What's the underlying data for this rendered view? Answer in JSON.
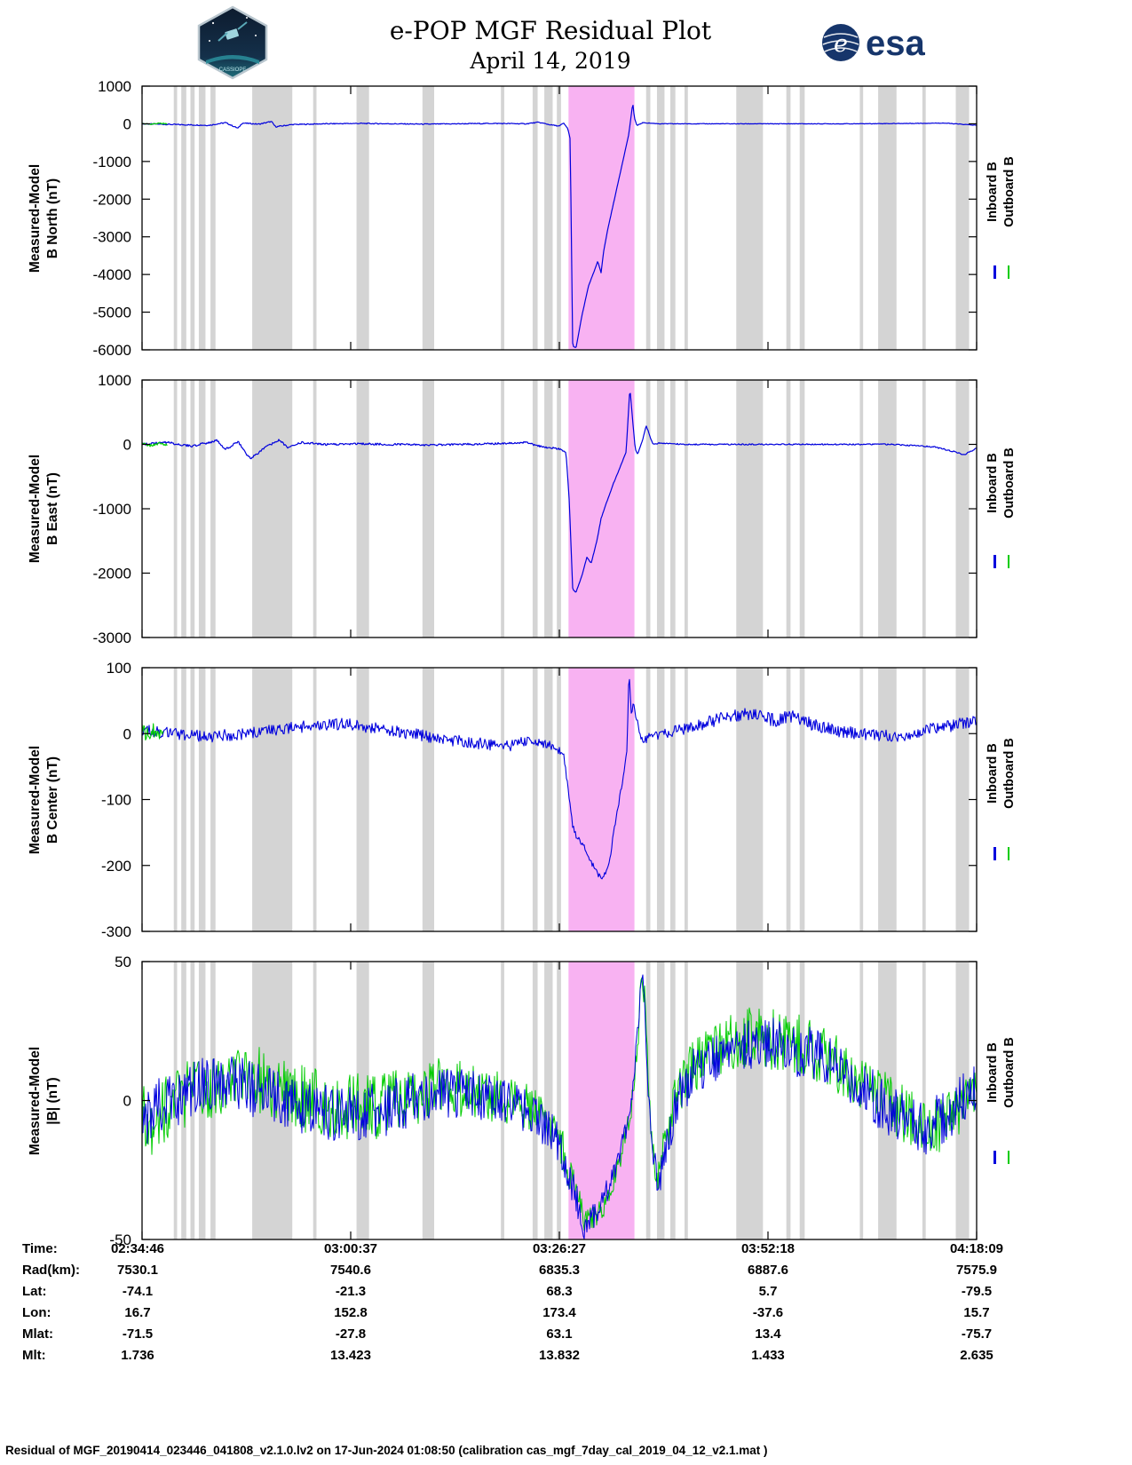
{
  "header": {
    "esa_text": "esa",
    "patch_text": "CASSIOPE"
  },
  "chart_data": {
    "type": "line",
    "title": "e-POP MGF Residual Plot",
    "subtitle": "April 14, 2019",
    "series_names": [
      "Inboard B",
      "Outboard B"
    ],
    "colors": {
      "inboard": "#0000dd",
      "outboard": "#00cc00",
      "highlight": "#f8b2f2",
      "gap": "#d4d4d4"
    },
    "highlight_band": {
      "start": 0.511,
      "end": 0.59,
      "color": "#f8b2f2"
    },
    "gap_bands": [
      [
        0.038,
        0.004
      ],
      [
        0.047,
        0.006
      ],
      [
        0.058,
        0.005
      ],
      [
        0.068,
        0.008
      ],
      [
        0.082,
        0.006
      ],
      [
        0.132,
        0.048
      ],
      [
        0.205,
        0.004
      ],
      [
        0.257,
        0.015
      ],
      [
        0.336,
        0.014
      ],
      [
        0.43,
        0.004
      ],
      [
        0.468,
        0.006
      ],
      [
        0.482,
        0.01
      ],
      [
        0.497,
        0.005
      ],
      [
        0.604,
        0.005
      ],
      [
        0.617,
        0.009
      ],
      [
        0.633,
        0.006
      ],
      [
        0.65,
        0.004
      ],
      [
        0.712,
        0.032
      ],
      [
        0.772,
        0.005
      ],
      [
        0.788,
        0.006
      ],
      [
        0.86,
        0.004
      ],
      [
        0.882,
        0.022
      ],
      [
        0.935,
        0.004
      ],
      [
        0.975,
        0.016
      ]
    ],
    "x_table": {
      "col_fractions": [
        0,
        0.25,
        0.5,
        0.75,
        1
      ],
      "rows": [
        {
          "label": "Time:",
          "values": [
            "02:34:46",
            "03:00:37",
            "03:26:27",
            "03:52:18",
            "04:18:09"
          ]
        },
        {
          "label": "Rad(km):",
          "values": [
            "7530.1",
            "7540.6",
            "6835.3",
            "6887.6",
            "7575.9"
          ]
        },
        {
          "label": "Lat:",
          "values": [
            "-74.1",
            "-21.3",
            "68.3",
            "5.7",
            "-79.5"
          ]
        },
        {
          "label": "Lon:",
          "values": [
            "16.7",
            "152.8",
            "173.4",
            "-37.6",
            "15.7"
          ]
        },
        {
          "label": "Mlat:",
          "values": [
            "-71.5",
            "-27.8",
            "63.1",
            "13.4",
            "-75.7"
          ]
        },
        {
          "label": "Mlt:",
          "values": [
            "1.736",
            "13.423",
            "13.832",
            "1.433",
            "2.635"
          ]
        }
      ]
    },
    "panels": [
      {
        "ylabel_line1": "Measured-Model",
        "ylabel_line2": "B North (nT)",
        "ylim": [
          -6000,
          1000
        ],
        "yticks": [
          1000,
          0,
          -1000,
          -2000,
          -3000,
          -4000,
          -5000,
          -6000
        ],
        "series": [
          {
            "name": "Inboard B",
            "color": "#0000dd",
            "width": 1.2,
            "x": [
              0,
              0.04,
              0.08,
              0.1,
              0.115,
              0.12,
              0.14,
              0.155,
              0.16,
              0.18,
              0.22,
              0.26,
              0.3,
              0.34,
              0.38,
              0.42,
              0.46,
              0.475,
              0.49,
              0.5,
              0.505,
              0.51,
              0.513,
              0.516,
              0.52,
              0.527,
              0.535,
              0.542,
              0.546,
              0.55,
              0.553,
              0.558,
              0.565,
              0.572,
              0.578,
              0.583,
              0.586,
              0.588,
              0.59,
              0.593,
              0.6,
              0.62,
              0.66,
              0.72,
              0.78,
              0.85,
              0.92,
              0.96,
              1
            ],
            "y": [
              0,
              -20,
              -40,
              30,
              -120,
              20,
              -10,
              60,
              -80,
              -20,
              0,
              10,
              0,
              -10,
              0,
              10,
              0,
              40,
              -30,
              -60,
              20,
              -120,
              -400,
              -5900,
              -5950,
              -5100,
              -4300,
              -3900,
              -3650,
              -3950,
              -3400,
              -2800,
              -2100,
              -1400,
              -800,
              -300,
              200,
              550,
              150,
              -50,
              30,
              0,
              0,
              0,
              0,
              0,
              10,
              20,
              -40
            ],
            "noise": [
              [
                0,
                15
              ],
              [
                0.5,
                12
              ],
              [
                0.51,
                5
              ],
              [
                0.59,
                5
              ],
              [
                0.6,
                8
              ],
              [
                1,
                8
              ]
            ]
          },
          {
            "name": "Outboard B",
            "color": "#00cc00",
            "width": 1.2,
            "x": [
              0,
              0.01,
              0.02,
              0.03
            ],
            "y": [
              0,
              -10,
              10,
              0
            ],
            "noise": [
              [
                0,
                15
              ],
              [
                0.03,
                15
              ]
            ]
          }
        ]
      },
      {
        "ylabel_line1": "Measured-Model",
        "ylabel_line2": "B East (nT)",
        "ylim": [
          -3000,
          1000
        ],
        "yticks": [
          1000,
          0,
          -1000,
          -2000,
          -3000
        ],
        "series": [
          {
            "name": "Inboard B",
            "color": "#0000dd",
            "width": 1.2,
            "x": [
              0,
              0.03,
              0.06,
              0.09,
              0.1,
              0.115,
              0.125,
              0.13,
              0.15,
              0.165,
              0.175,
              0.19,
              0.22,
              0.26,
              0.3,
              0.34,
              0.38,
              0.42,
              0.46,
              0.48,
              0.5,
              0.508,
              0.512,
              0.516,
              0.52,
              0.528,
              0.533,
              0.538,
              0.545,
              0.55,
              0.558,
              0.565,
              0.572,
              0.58,
              0.5845,
              0.588,
              0.591,
              0.594,
              0.597,
              0.6,
              0.604,
              0.608,
              0.612,
              0.62,
              0.65,
              0.7,
              0.75,
              0.8,
              0.85,
              0.9,
              0.95,
              0.975,
              0.985,
              1
            ],
            "y": [
              0,
              30,
              -30,
              60,
              -80,
              40,
              -150,
              -220,
              -30,
              70,
              -60,
              30,
              0,
              10,
              0,
              -10,
              0,
              10,
              30,
              -40,
              -70,
              -120,
              -900,
              -2250,
              -2300,
              -2000,
              -1750,
              -1850,
              -1500,
              -1150,
              -850,
              -600,
              -380,
              -120,
              880,
              350,
              -80,
              -150,
              -40,
              80,
              300,
              150,
              0,
              20,
              0,
              0,
              0,
              0,
              0,
              0,
              -40,
              -120,
              -160,
              -60
            ],
            "noise": [
              [
                0,
                18
              ],
              [
                0.5,
                14
              ],
              [
                0.51,
                6
              ],
              [
                0.59,
                6
              ],
              [
                0.6,
                10
              ],
              [
                1,
                10
              ]
            ]
          },
          {
            "name": "Outboard B",
            "color": "#00cc00",
            "width": 1.2,
            "x": [
              0,
              0.01,
              0.02,
              0.03
            ],
            "y": [
              10,
              -20,
              15,
              0
            ],
            "noise": [
              [
                0,
                20
              ],
              [
                0.03,
                20
              ]
            ]
          }
        ]
      },
      {
        "ylabel_line1": "Measured-Model",
        "ylabel_line2": "B Center (nT)",
        "ylim": [
          -300,
          100
        ],
        "yticks": [
          100,
          0,
          -100,
          -200,
          -300
        ],
        "series": [
          {
            "name": "Inboard B",
            "color": "#0000dd",
            "width": 1.1,
            "x": [
              0,
              0.04,
              0.08,
              0.12,
              0.16,
              0.2,
              0.24,
              0.28,
              0.32,
              0.36,
              0.4,
              0.44,
              0.47,
              0.49,
              0.505,
              0.511,
              0.516,
              0.52,
              0.528,
              0.535,
              0.542,
              0.55,
              0.556,
              0.56,
              0.565,
              0.57,
              0.576,
              0.581,
              0.5835,
              0.586,
              0.589,
              0.592,
              0.596,
              0.6,
              0.61,
              0.62,
              0.64,
              0.66,
              0.68,
              0.7,
              0.72,
              0.74,
              0.76,
              0.78,
              0.8,
              0.83,
              0.86,
              0.9,
              0.94,
              0.97,
              1
            ],
            "y": [
              5,
              0,
              -5,
              0,
              5,
              12,
              15,
              8,
              0,
              -8,
              -15,
              -18,
              -10,
              -18,
              -30,
              -90,
              -140,
              -155,
              -168,
              -185,
              -205,
              -220,
              -212,
              -195,
              -150,
              -115,
              -70,
              -25,
              95,
              30,
              45,
              25,
              5,
              -15,
              -5,
              0,
              5,
              10,
              18,
              25,
              30,
              26,
              20,
              28,
              15,
              5,
              0,
              -5,
              5,
              12,
              20
            ],
            "noise": [
              [
                0,
                9
              ],
              [
                0.45,
                9
              ],
              [
                0.5,
                6
              ],
              [
                0.51,
                4
              ],
              [
                0.59,
                4
              ],
              [
                0.6,
                8
              ],
              [
                0.72,
                10
              ],
              [
                1,
                9
              ]
            ]
          },
          {
            "name": "Outboard B",
            "color": "#00cc00",
            "width": 1.1,
            "x": [
              0,
              0.008,
              0.016,
              0.025
            ],
            "y": [
              5,
              -5,
              8,
              0
            ],
            "noise": [
              [
                0,
                12
              ],
              [
                0.025,
                12
              ]
            ]
          }
        ]
      },
      {
        "ylabel_line1": "Measured-Model",
        "ylabel_line2": "|B| (nT)",
        "ylim": [
          -50,
          50
        ],
        "yticks": [
          50,
          0,
          -50
        ],
        "series": [
          {
            "name": "Outboard B",
            "color": "#00cc00",
            "width": 1.0,
            "x": [
              0,
              0.03,
              0.06,
              0.1,
              0.13,
              0.16,
              0.2,
              0.24,
              0.28,
              0.32,
              0.36,
              0.4,
              0.44,
              0.47,
              0.5,
              0.52,
              0.53,
              0.55,
              0.57,
              0.585,
              0.595,
              0.598,
              0.602,
              0.61,
              0.615,
              0.62,
              0.64,
              0.66,
              0.68,
              0.7,
              0.73,
              0.76,
              0.8,
              0.84,
              0.88,
              0.92,
              0.96,
              1
            ],
            "y": [
              -8,
              -2,
              3,
              7,
              9,
              5,
              0,
              -2,
              -2,
              2,
              5,
              3,
              0,
              -4,
              -14,
              -33,
              -44,
              -40,
              -24,
              -6,
              25,
              44,
              38,
              -12,
              -28,
              -24,
              2,
              12,
              17,
              21,
              23,
              22,
              19,
              12,
              2,
              -6,
              -9,
              3
            ],
            "noise": [
              [
                0,
                14
              ],
              [
                0.1,
                12
              ],
              [
                0.3,
                12
              ],
              [
                0.5,
                8
              ],
              [
                0.53,
                5
              ],
              [
                0.6,
                4
              ],
              [
                0.65,
                10
              ],
              [
                0.75,
                11
              ],
              [
                1,
                10
              ]
            ]
          },
          {
            "name": "Inboard B",
            "color": "#0000dd",
            "width": 1.0,
            "x": [
              0,
              0.03,
              0.06,
              0.1,
              0.13,
              0.16,
              0.2,
              0.24,
              0.28,
              0.32,
              0.36,
              0.4,
              0.44,
              0.47,
              0.5,
              0.52,
              0.53,
              0.55,
              0.57,
              0.585,
              0.595,
              0.598,
              0.602,
              0.606,
              0.612,
              0.618,
              0.625,
              0.64,
              0.66,
              0.68,
              0.7,
              0.73,
              0.76,
              0.8,
              0.84,
              0.88,
              0.91,
              0.94,
              0.97,
              1
            ],
            "y": [
              -6,
              -1,
              4,
              8,
              4,
              1,
              -3,
              -5,
              -4,
              0,
              3,
              2,
              -1,
              -5,
              -15,
              -35,
              -45,
              -38,
              -22,
              -5,
              28,
              46,
              40,
              5,
              -18,
              -30,
              -22,
              0,
              10,
              15,
              18,
              20,
              20,
              17,
              10,
              0,
              -7,
              -10,
              -4,
              6
            ],
            "noise": [
              [
                0,
                11
              ],
              [
                0.1,
                10
              ],
              [
                0.3,
                10
              ],
              [
                0.5,
                7
              ],
              [
                0.53,
                5
              ],
              [
                0.6,
                3
              ],
              [
                0.62,
                6
              ],
              [
                0.65,
                9
              ],
              [
                0.75,
                10
              ],
              [
                0.9,
                10
              ],
              [
                1,
                9
              ]
            ]
          }
        ]
      }
    ]
  },
  "footer": {
    "text": "Residual of MGF_20190414_023446_041808_v2.1.0.lv2 on 17-Jun-2024 01:08:50 (calibration cas_mgf_7day_cal_2019_04_12_v2.1.mat )"
  }
}
